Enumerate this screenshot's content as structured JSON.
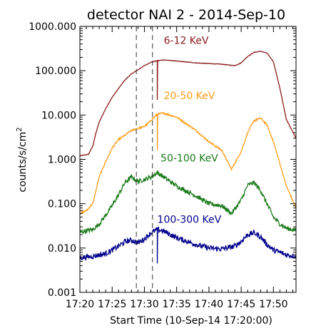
{
  "chart_data": {
    "type": "line",
    "title": "detector NAI 2 - 2014-Sep-10",
    "xlabel": "Start Time (10-Sep-14 17:20:00)",
    "ylabel": "counts/s/cm",
    "ylabel_sup": "2",
    "y_scale": "log",
    "xlim": [
      "17:20:00",
      "17:53:30"
    ],
    "ylim": [
      0.001,
      1000
    ],
    "grid": false,
    "legend": "none",
    "x_ticks": [
      "17:20",
      "17:25",
      "17:30",
      "17:35",
      "17:40",
      "17:45",
      "17:50"
    ],
    "y_ticks": [
      "1000.000",
      "100.000",
      "10.000",
      "1.000",
      "0.100",
      "0.010",
      "0.001"
    ],
    "vertical_lines": [
      "17:28:45",
      "17:31:15"
    ],
    "series": [
      {
        "name": "6-12 KeV",
        "color": "#8b1a1a",
        "x": [
          "17:20:00",
          "17:21:20",
          "17:22:00",
          "17:22:30",
          "17:23:00",
          "17:24:00",
          "17:25:00",
          "17:26:00",
          "17:27:00",
          "17:28:00",
          "17:29:00",
          "17:30:00",
          "17:31:00",
          "17:32:00",
          "17:33:00",
          "17:35:00",
          "17:38:00",
          "17:40:00",
          "17:42:00",
          "17:44:00",
          "17:45:00",
          "17:46:00",
          "17:47:00",
          "17:48:00",
          "17:49:00",
          "17:50:00",
          "17:51:00",
          "17:52:00",
          "17:53:30"
        ],
        "values": [
          1.2,
          1.3,
          2.0,
          4.0,
          7.0,
          14,
          25,
          40,
          62,
          85,
          105,
          130,
          155,
          168,
          175,
          165,
          150,
          145,
          140,
          130,
          150,
          210,
          260,
          275,
          250,
          160,
          40,
          8,
          3
        ]
      },
      {
        "name": "20-50 KeV",
        "color": "#ff9c1a",
        "x": [
          "17:20:00",
          "17:21:00",
          "17:22:00",
          "17:22:30",
          "17:23:00",
          "17:24:00",
          "17:25:00",
          "17:26:00",
          "17:27:00",
          "17:28:00",
          "17:29:00",
          "17:30:00",
          "17:31:00",
          "17:32:00",
          "17:33:00",
          "17:35:00",
          "17:38:00",
          "17:40:00",
          "17:42:00",
          "17:43:30",
          "17:45:00",
          "17:46:00",
          "17:47:00",
          "17:48:00",
          "17:49:00",
          "17:50:00",
          "17:51:00",
          "17:52:00",
          "17:53:30"
        ],
        "values": [
          0.06,
          0.07,
          0.1,
          0.2,
          0.4,
          0.9,
          1.8,
          2.8,
          3.5,
          4.5,
          5.0,
          5.5,
          7.5,
          10.5,
          11.0,
          9.0,
          4.5,
          2.5,
          1.6,
          0.6,
          1.5,
          4.0,
          7.5,
          8.5,
          6.0,
          2.5,
          0.8,
          0.25,
          0.08
        ]
      },
      {
        "name": "50-100 KeV",
        "color": "#1a7a1a",
        "x": [
          "17:20:00",
          "17:22:00",
          "17:23:00",
          "17:24:00",
          "17:25:00",
          "17:26:00",
          "17:27:00",
          "17:28:00",
          "17:29:00",
          "17:30:00",
          "17:31:00",
          "17:32:00",
          "17:33:00",
          "17:35:00",
          "17:38:00",
          "17:40:00",
          "17:42:00",
          "17:43:30",
          "17:45:00",
          "17:46:00",
          "17:47:00",
          "17:48:00",
          "17:49:00",
          "17:50:00",
          "17:51:00",
          "17:52:00",
          "17:53:30"
        ],
        "values": [
          0.023,
          0.026,
          0.035,
          0.055,
          0.09,
          0.16,
          0.3,
          0.4,
          0.32,
          0.35,
          0.4,
          0.5,
          0.4,
          0.25,
          0.15,
          0.1,
          0.09,
          0.06,
          0.12,
          0.26,
          0.3,
          0.2,
          0.1,
          0.05,
          0.035,
          0.028,
          0.025
        ]
      },
      {
        "name": "100-300 KeV",
        "color": "#00008b",
        "x": [
          "17:20:00",
          "17:22:00",
          "17:24:00",
          "17:25:00",
          "17:26:00",
          "17:27:00",
          "17:28:00",
          "17:29:00",
          "17:30:00",
          "17:31:00",
          "17:32:00",
          "17:33:00",
          "17:35:00",
          "17:38:00",
          "17:40:00",
          "17:42:00",
          "17:44:00",
          "17:45:00",
          "17:46:00",
          "17:47:00",
          "17:48:00",
          "17:49:00",
          "17:50:00",
          "17:51:00",
          "17:52:00",
          "17:53:30"
        ],
        "values": [
          0.006,
          0.0065,
          0.0075,
          0.009,
          0.011,
          0.014,
          0.015,
          0.013,
          0.016,
          0.022,
          0.026,
          0.024,
          0.017,
          0.012,
          0.01,
          0.0095,
          0.011,
          0.014,
          0.02,
          0.022,
          0.018,
          0.012,
          0.009,
          0.008,
          0.007,
          0.0065
        ]
      }
    ],
    "dips": [
      {
        "series": "6-12 KeV",
        "x": "17:32:00",
        "from": 160,
        "to": 22
      },
      {
        "series": "20-50 KeV",
        "x": "17:32:00",
        "from": 10,
        "to": 1.6
      },
      {
        "series": "100-300 KeV",
        "x": "17:32:00",
        "from": 0.024,
        "to": 0.0045
      }
    ]
  }
}
